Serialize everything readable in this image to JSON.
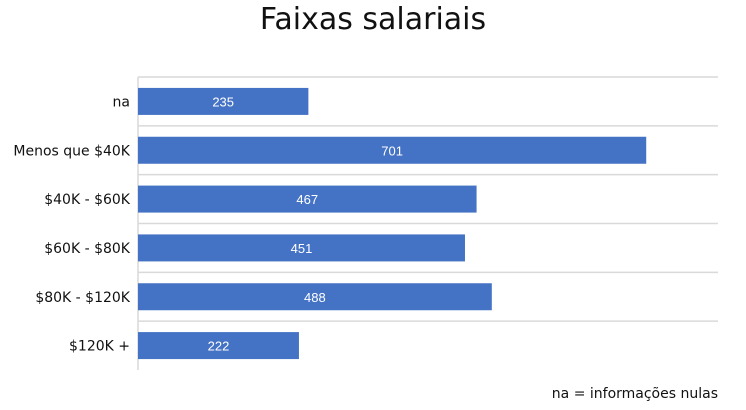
{
  "chart_data": {
    "type": "bar",
    "orientation": "horizontal",
    "title": "Faixas salariais",
    "categories": [
      "na",
      "Menos que $40K",
      "$40K - $60K",
      "$60K - $80K",
      "$80K - $120K",
      "$120K +"
    ],
    "values": [
      235,
      701,
      467,
      451,
      488,
      222
    ],
    "data_labels": [
      "235",
      "701",
      "467",
      "451",
      "488",
      "222"
    ],
    "xlim": [
      0,
      800
    ],
    "grid": "horizontal lines between categories",
    "legend": "none",
    "bar_color": "#4472C4",
    "data_label_color": "#FFFFFF",
    "footnote": "na = informações nulas"
  }
}
